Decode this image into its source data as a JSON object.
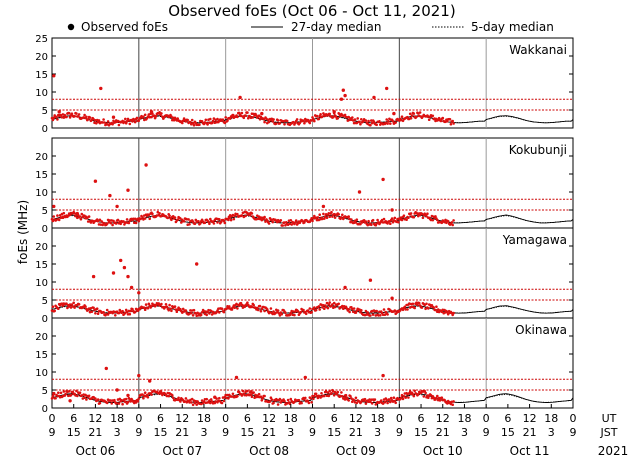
{
  "chart_data": {
    "type": "scatter",
    "title": "Observed foEs (Oct 06 - Oct 11, 2021)",
    "ylabel": "foEs (MHz)",
    "legend": {
      "observed": "Observed foEs",
      "median27": "27-day median",
      "median5": "5-day median"
    },
    "colors": {
      "observed": "#dd1111",
      "median": "#000000",
      "threshold": "#cc0000"
    },
    "ylim": [
      0,
      25
    ],
    "yticks": [
      0,
      5,
      10,
      15,
      20,
      25
    ],
    "threshold_lines_mhz": [
      5,
      8
    ],
    "ut_ticks": [
      "0",
      "6",
      "12",
      "18",
      "0",
      "6",
      "12",
      "18",
      "0",
      "6",
      "12",
      "18",
      "0",
      "6",
      "12",
      "18",
      "0",
      "6",
      "12",
      "18",
      "0",
      "6",
      "12",
      "18",
      "0"
    ],
    "jst_ticks": [
      "9",
      "15",
      "21",
      "3",
      "9",
      "15",
      "21",
      "3",
      "9",
      "15",
      "21",
      "3",
      "9",
      "15",
      "21",
      "3",
      "9",
      "15",
      "21",
      "3",
      "9",
      "15",
      "21",
      "3",
      "9"
    ],
    "axis_tags": {
      "ut": "UT",
      "jst": "JST"
    },
    "days": [
      "Oct 06",
      "Oct 07",
      "Oct 08",
      "Oct 09",
      "Oct 10",
      "Oct 11"
    ],
    "year": "2021",
    "panels": [
      {
        "station": "Wakkanai",
        "baseline_mhz": [
          2.5,
          3.0,
          3.5,
          3.6,
          3.3,
          2.8,
          2.2,
          1.8,
          1.6,
          1.5,
          1.6,
          1.8,
          2.0,
          2.0
        ],
        "outliers": [
          [
            0.5,
            14.5
          ],
          [
            2.0,
            4.5
          ],
          [
            13.5,
            11.0
          ],
          [
            17.0,
            3.0
          ],
          [
            27.5,
            4.5
          ],
          [
            50.0,
            3.5
          ],
          [
            52.0,
            8.5
          ],
          [
            58.0,
            4.0
          ],
          [
            78.0,
            4.5
          ],
          [
            80.0,
            8.0
          ],
          [
            80.5,
            10.5
          ],
          [
            81.0,
            9.0
          ],
          [
            89.0,
            8.5
          ],
          [
            92.5,
            11.0
          ],
          [
            94.5,
            4.0
          ]
        ]
      },
      {
        "station": "Kokubunji",
        "baseline_mhz": [
          2.5,
          3.0,
          3.5,
          3.8,
          3.4,
          2.8,
          2.2,
          1.8,
          1.5,
          1.5,
          1.6,
          1.8,
          2.0,
          2.1
        ],
        "outliers": [
          [
            0.5,
            6.0
          ],
          [
            3.0,
            3.0
          ],
          [
            7.0,
            4.0
          ],
          [
            12.0,
            13.0
          ],
          [
            16.0,
            9.0
          ],
          [
            18.0,
            6.0
          ],
          [
            21.0,
            10.5
          ],
          [
            26.0,
            17.5
          ],
          [
            49.0,
            3.0
          ],
          [
            75.0,
            6.0
          ],
          [
            85.0,
            10.0
          ],
          [
            91.5,
            13.5
          ],
          [
            94.0,
            5.0
          ]
        ]
      },
      {
        "station": "Yamagawa",
        "baseline_mhz": [
          2.5,
          3.0,
          3.5,
          3.6,
          3.2,
          2.7,
          2.2,
          1.8,
          1.5,
          1.4,
          1.5,
          1.7,
          1.9,
          2.0
        ],
        "outliers": [
          [
            11.5,
            11.5
          ],
          [
            17.0,
            12.5
          ],
          [
            19.0,
            16.0
          ],
          [
            20.0,
            14.0
          ],
          [
            21.0,
            11.5
          ],
          [
            22.0,
            8.5
          ],
          [
            24.0,
            7.0
          ],
          [
            40.0,
            15.0
          ],
          [
            81.0,
            8.5
          ],
          [
            88.0,
            10.5
          ],
          [
            94.0,
            5.5
          ]
        ]
      },
      {
        "station": "Okinawa",
        "baseline_mhz": [
          3.0,
          3.5,
          4.0,
          4.2,
          3.8,
          3.2,
          2.5,
          2.0,
          1.7,
          1.6,
          1.7,
          1.9,
          2.1,
          2.3
        ],
        "outliers": [
          [
            0.5,
            4.0
          ],
          [
            5.0,
            2.0
          ],
          [
            15.0,
            11.0
          ],
          [
            18.0,
            5.0
          ],
          [
            21.0,
            3.5
          ],
          [
            24.0,
            9.0
          ],
          [
            27.0,
            7.5
          ],
          [
            30.0,
            4.5
          ],
          [
            45.0,
            3.0
          ],
          [
            51.0,
            8.5
          ],
          [
            55.0,
            4.5
          ],
          [
            70.0,
            8.5
          ],
          [
            81.0,
            2.5
          ],
          [
            91.5,
            9.0
          ]
        ]
      }
    ]
  }
}
